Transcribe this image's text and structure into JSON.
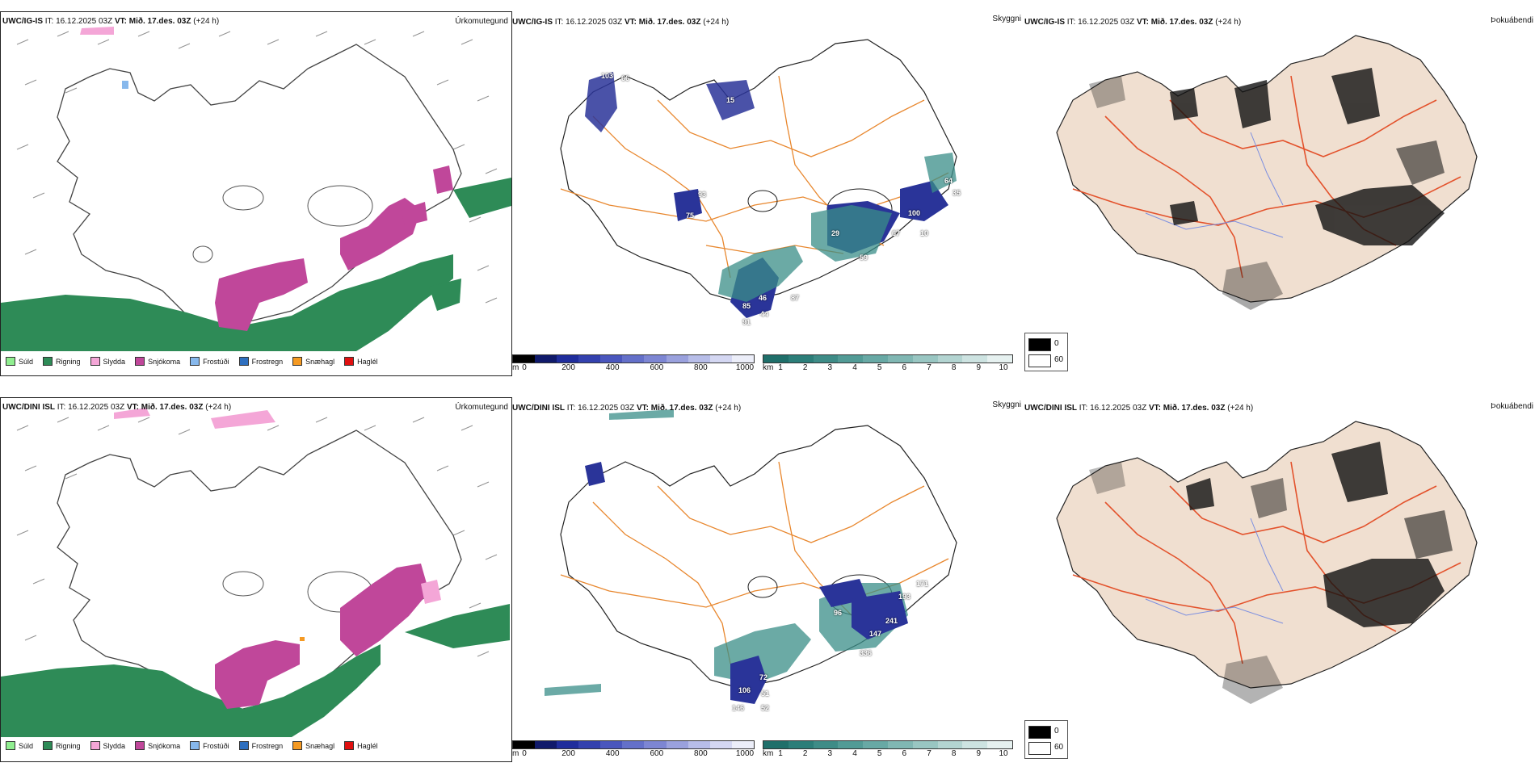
{
  "rows": [
    {
      "model": "UWC/IG-IS",
      "it_label": "IT:",
      "it_time": "16.12.2025 03Z",
      "vt_label": "VT:",
      "vt_time": "Mið. 17.des. 03Z",
      "lead": "(+24 h)"
    },
    {
      "model": "UWC/DINI ISL",
      "it_label": "IT:",
      "it_time": "16.12.2025 03Z",
      "vt_label": "VT:",
      "vt_time": "Mið. 17.des. 03Z",
      "lead": "(+24 h)"
    }
  ],
  "panel_titles": {
    "precip_type": "Úrkomutegund",
    "visibility": "Skyggni",
    "fog": "Þokuábendi"
  },
  "precip_legend": [
    {
      "label": "Súld",
      "color": "#90ee90"
    },
    {
      "label": "Rigning",
      "color": "#2e8b57"
    },
    {
      "label": "Slydda",
      "color": "#f4a6d7"
    },
    {
      "label": "Snjókoma",
      "color": "#c0479a"
    },
    {
      "label": "Frostúði",
      "color": "#87b8ec"
    },
    {
      "label": "Frostregn",
      "color": "#2e6fbf"
    },
    {
      "label": "Snæhagl",
      "color": "#f59a23"
    },
    {
      "label": "Haglél",
      "color": "#e01010"
    }
  ],
  "cloud_base_bar": {
    "unit": "m",
    "ticks": [
      "0",
      "200",
      "400",
      "600",
      "800",
      "1000"
    ],
    "colors": [
      "#000000",
      "#101a6b",
      "#1f2d9c",
      "#3341ae",
      "#4a56bd",
      "#6470c9",
      "#7d86d3",
      "#9aa1dd",
      "#b7bde8",
      "#d4d7f2",
      "#eceef9"
    ]
  },
  "visibility_bar": {
    "unit": "km",
    "ticks": [
      "1",
      "2",
      "3",
      "4",
      "5",
      "6",
      "7",
      "8",
      "9",
      "10"
    ],
    "colors": [
      "#1f6f6a",
      "#2c7e79",
      "#3e8c87",
      "#529b96",
      "#68a9a5",
      "#80b7b3",
      "#99c6c2",
      "#b3d4d1",
      "#cde3e1",
      "#e6f1f0"
    ]
  },
  "fog_key": [
    {
      "label": "0",
      "color": "#000000"
    },
    {
      "label": "60",
      "color": "#ffffff"
    }
  ],
  "row1_visibility_labels": [
    "103",
    "66",
    "75",
    "93",
    "15",
    "46",
    "44",
    "85",
    "91",
    "87",
    "59",
    "29",
    "67",
    "100",
    "10",
    "64",
    "35"
  ],
  "row2_visibility_labels": [
    "72",
    "51",
    "52",
    "106",
    "146",
    "96",
    "147",
    "241",
    "193",
    "336",
    "171"
  ]
}
